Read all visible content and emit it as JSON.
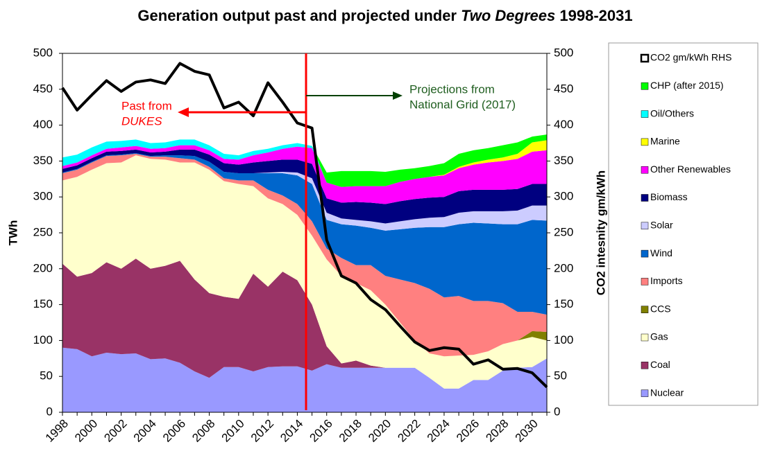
{
  "chart_data": {
    "type": "area",
    "title": [
      "Generation output past and projected under",
      "Two Degrees",
      "1998-2031"
    ],
    "y_label": "TWh",
    "y2_label": "CO2 intesnity gm/kWh",
    "annotations": {
      "past": [
        "Past from",
        "DUKES"
      ],
      "projections": [
        "Projections from",
        "National Grid (2017)"
      ]
    },
    "categories": [
      "1998",
      null,
      "2000",
      null,
      "2002",
      null,
      "2004",
      null,
      "2006",
      null,
      "2008",
      null,
      "2010",
      null,
      "2012",
      null,
      "2014",
      null,
      "2016",
      null,
      "2018",
      null,
      "2020",
      null,
      "2022",
      null,
      "2024",
      null,
      "2026",
      null,
      "2028",
      null,
      "2030",
      null
    ],
    "ylim": [
      0,
      500
    ],
    "yticks": [
      0,
      50,
      100,
      150,
      200,
      250,
      300,
      350,
      400,
      450,
      500
    ],
    "y2lim": [
      0,
      500
    ],
    "y2ticks": [
      0,
      50,
      100,
      150,
      200,
      250,
      300,
      350,
      400,
      450,
      500
    ],
    "series": [
      {
        "name": "Nuclear",
        "color": "#9999ff",
        "values": [
          90,
          88,
          78,
          83,
          81,
          82,
          74,
          75,
          69,
          57,
          48,
          63,
          63,
          57,
          63,
          64,
          64,
          58,
          67,
          62,
          62,
          62,
          62,
          62,
          62,
          48,
          33,
          33,
          45,
          45,
          58,
          62,
          63,
          75
        ]
      },
      {
        "name": "Coal",
        "color": "#993366",
        "values": [
          117,
          101,
          116,
          126,
          119,
          132,
          126,
          129,
          142,
          128,
          118,
          98,
          95,
          136,
          112,
          132,
          120,
          92,
          25,
          6,
          10,
          3,
          0,
          0,
          0,
          0,
          0,
          0,
          0,
          0,
          0,
          0,
          0,
          0
        ]
      },
      {
        "name": "Gas",
        "color": "#ffffcc",
        "values": [
          116,
          139,
          144,
          138,
          148,
          144,
          153,
          148,
          137,
          163,
          172,
          161,
          160,
          122,
          123,
          94,
          91,
          96,
          121,
          122,
          108,
          105,
          88,
          63,
          38,
          34,
          45,
          46,
          35,
          40,
          37,
          38,
          42,
          25
        ]
      },
      {
        "name": "CCS",
        "color": "#808000",
        "values": [
          0,
          0,
          0,
          0,
          0,
          0,
          0,
          0,
          0,
          0,
          0,
          0,
          0,
          0,
          0,
          0,
          0,
          0,
          0,
          0,
          0,
          0,
          0,
          0,
          0,
          0,
          0,
          0,
          0,
          0,
          0,
          0,
          8,
          12
        ]
      },
      {
        "name": "Imports",
        "color": "#ff8080",
        "values": [
          10,
          10,
          10,
          10,
          10,
          2,
          3,
          4,
          6,
          4,
          4,
          4,
          5,
          8,
          12,
          12,
          15,
          20,
          15,
          25,
          25,
          35,
          40,
          60,
          80,
          90,
          82,
          83,
          75,
          70,
          57,
          40,
          27,
          24
        ]
      },
      {
        "name": "Wind",
        "color": "#0066cc",
        "values": [
          1,
          1,
          1,
          1,
          1,
          1,
          1,
          2,
          4,
          5,
          7,
          9,
          10,
          10,
          23,
          31,
          40,
          52,
          40,
          47,
          55,
          52,
          63,
          70,
          77,
          86,
          98,
          100,
          109,
          108,
          110,
          122,
          128,
          131
        ]
      },
      {
        "name": "Solar",
        "color": "#ccccff",
        "values": [
          0,
          0,
          0,
          0,
          0,
          0,
          0,
          0,
          0,
          0,
          0,
          0,
          0,
          0,
          1,
          2,
          4,
          8,
          10,
          8,
          8,
          9,
          10,
          11,
          12,
          13,
          14,
          16,
          16,
          17,
          18,
          19,
          20,
          21
        ]
      },
      {
        "name": "Biomass",
        "color": "#000080",
        "values": [
          5,
          5,
          5,
          5,
          5,
          5,
          5,
          5,
          8,
          9,
          10,
          12,
          12,
          15,
          16,
          17,
          18,
          20,
          20,
          22,
          25,
          26,
          27,
          28,
          28,
          28,
          28,
          30,
          30,
          30,
          30,
          30,
          30,
          30
        ]
      },
      {
        "name": "Other Renewables",
        "color": "#ff00ff",
        "values": [
          4,
          4,
          4,
          4,
          5,
          5,
          5,
          5,
          6,
          6,
          6,
          6,
          7,
          10,
          12,
          15,
          18,
          22,
          22,
          22,
          22,
          23,
          25,
          27,
          28,
          29,
          30,
          32,
          35,
          38,
          40,
          42,
          45,
          47
        ]
      },
      {
        "name": "Marine",
        "color": "#ffff00",
        "values": [
          0,
          0,
          0,
          0,
          0,
          0,
          0,
          0,
          0,
          0,
          0,
          0,
          0,
          0,
          0,
          0,
          0,
          0,
          0,
          0,
          0,
          0,
          0,
          0,
          0,
          0,
          1,
          2,
          3,
          4,
          5,
          7,
          13,
          14
        ]
      },
      {
        "name": "Oil/Others",
        "color": "#00ffff",
        "values": [
          12,
          11,
          11,
          10,
          9,
          9,
          8,
          8,
          8,
          8,
          7,
          7,
          6,
          6,
          5,
          5,
          5,
          3,
          0,
          0,
          0,
          0,
          0,
          0,
          0,
          0,
          0,
          0,
          0,
          0,
          0,
          0,
          0,
          0
        ]
      },
      {
        "name": "CHP (after 2015)",
        "color": "#00ff00",
        "values": [
          0,
          0,
          0,
          0,
          0,
          0,
          0,
          0,
          0,
          0,
          0,
          0,
          0,
          0,
          0,
          0,
          0,
          0,
          14,
          22,
          21,
          21,
          20,
          17,
          15,
          15,
          16,
          18,
          17,
          16,
          17,
          16,
          8,
          8
        ]
      },
      {
        "name": "CO2 gm/kWh RHS",
        "color": "#000000",
        "axis": "y2",
        "values": [
          452,
          421,
          442,
          462,
          447,
          460,
          463,
          458,
          486,
          475,
          470,
          424,
          432,
          413,
          459,
          432,
          403,
          396,
          240,
          190,
          180,
          157,
          143,
          120,
          98,
          86,
          90,
          88,
          67,
          73,
          60,
          61,
          55,
          35
        ]
      }
    ]
  }
}
